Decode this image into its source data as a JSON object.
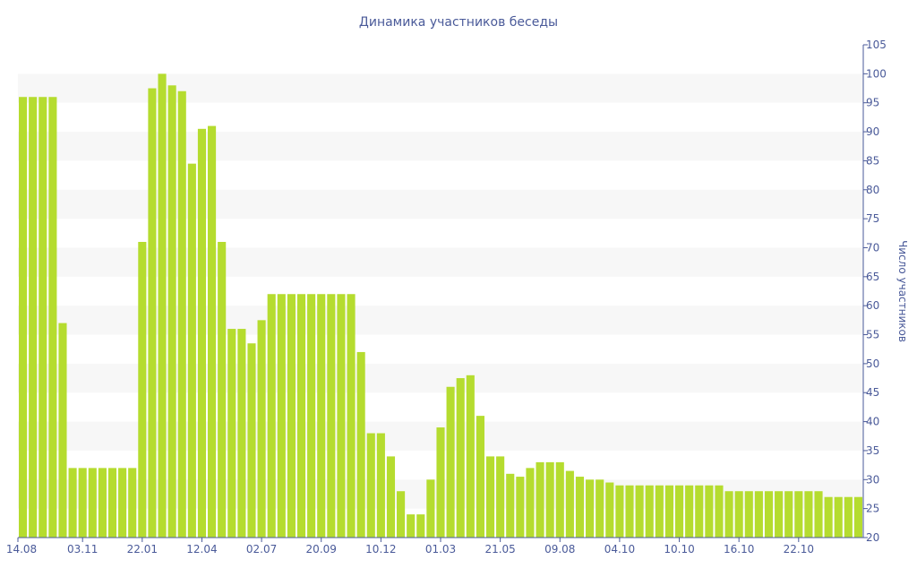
{
  "chart_data": {
    "type": "bar",
    "title": "Динамика участников беседы",
    "ylabel": "Число участников",
    "xlabel": "",
    "ylim": [
      20,
      105
    ],
    "yticks": [
      20,
      25,
      30,
      35,
      40,
      45,
      50,
      55,
      60,
      65,
      70,
      75,
      80,
      85,
      90,
      95,
      100,
      105
    ],
    "y_axis_side": "right",
    "grid": "alternating horizontal bands",
    "legend": "none",
    "bar_color": "#b5dc2f",
    "band_color": "#f7f7f7",
    "axis_color": "#4a5a99",
    "x_tick_labels": [
      {
        "index": 0,
        "label": "14.08"
      },
      {
        "index": 6,
        "label": "03.11"
      },
      {
        "index": 12,
        "label": "22.01"
      },
      {
        "index": 18,
        "label": "12.04"
      },
      {
        "index": 24,
        "label": "02.07"
      },
      {
        "index": 30,
        "label": "20.09"
      },
      {
        "index": 36,
        "label": "10.12"
      },
      {
        "index": 42,
        "label": "01.03"
      },
      {
        "index": 48,
        "label": "21.05"
      },
      {
        "index": 54,
        "label": "09.08"
      },
      {
        "index": 60,
        "label": "04.10"
      },
      {
        "index": 66,
        "label": "10.10"
      },
      {
        "index": 72,
        "label": "16.10"
      },
      {
        "index": 78,
        "label": "22.10"
      }
    ],
    "values": [
      96,
      96,
      96,
      96,
      57,
      32,
      32,
      32,
      32,
      32,
      32,
      32,
      71,
      97.5,
      100,
      98,
      97,
      84.5,
      90.5,
      91,
      71,
      56,
      56,
      53.5,
      57.5,
      62,
      62,
      62,
      62,
      62,
      62,
      62,
      62,
      62,
      52,
      38,
      38,
      34,
      28,
      24,
      24,
      30,
      39,
      46,
      47.5,
      48,
      41,
      34,
      34,
      31,
      30.5,
      32,
      33,
      33,
      33,
      31.5,
      30.5,
      30,
      30,
      29.5,
      29,
      29,
      29,
      29,
      29,
      29,
      29,
      29,
      29,
      29,
      29,
      28,
      28,
      28,
      28,
      28,
      28,
      28,
      28,
      28,
      28,
      27,
      27,
      27,
      27
    ]
  }
}
